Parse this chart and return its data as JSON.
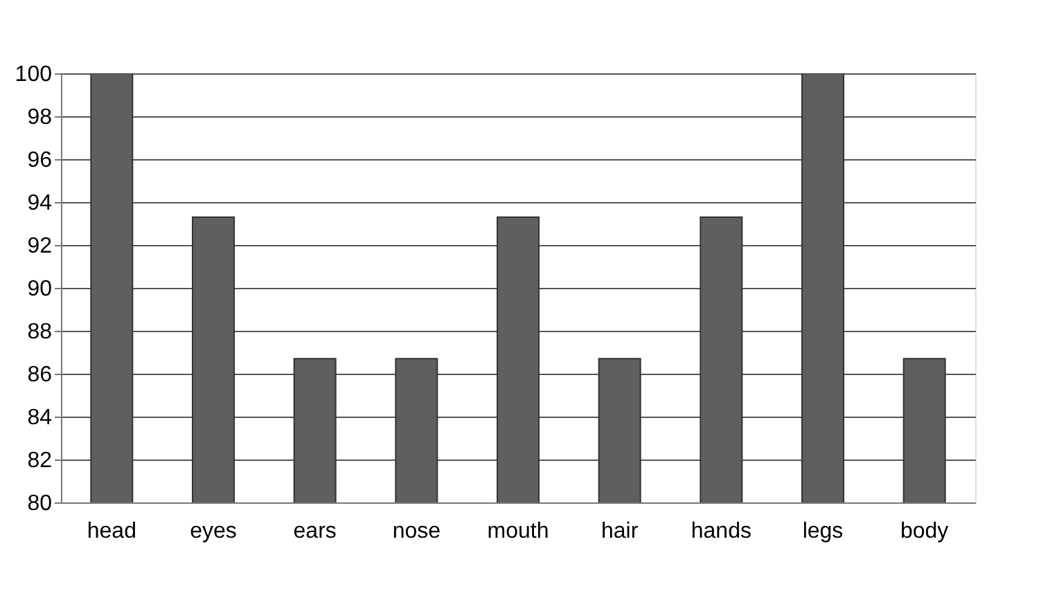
{
  "chart_data": {
    "type": "bar",
    "categories": [
      "head",
      "eyes",
      "ears",
      "nose",
      "mouth",
      "hair",
      "hands",
      "legs",
      "body"
    ],
    "values": [
      100,
      93.3,
      86.7,
      86.7,
      93.3,
      86.7,
      93.3,
      100,
      86.7
    ],
    "color": "#5f5f5f",
    "ylim": [
      80,
      100
    ],
    "yticks": [
      80,
      82,
      84,
      86,
      88,
      90,
      92,
      94,
      96,
      98,
      100
    ],
    "grid": "y"
  }
}
